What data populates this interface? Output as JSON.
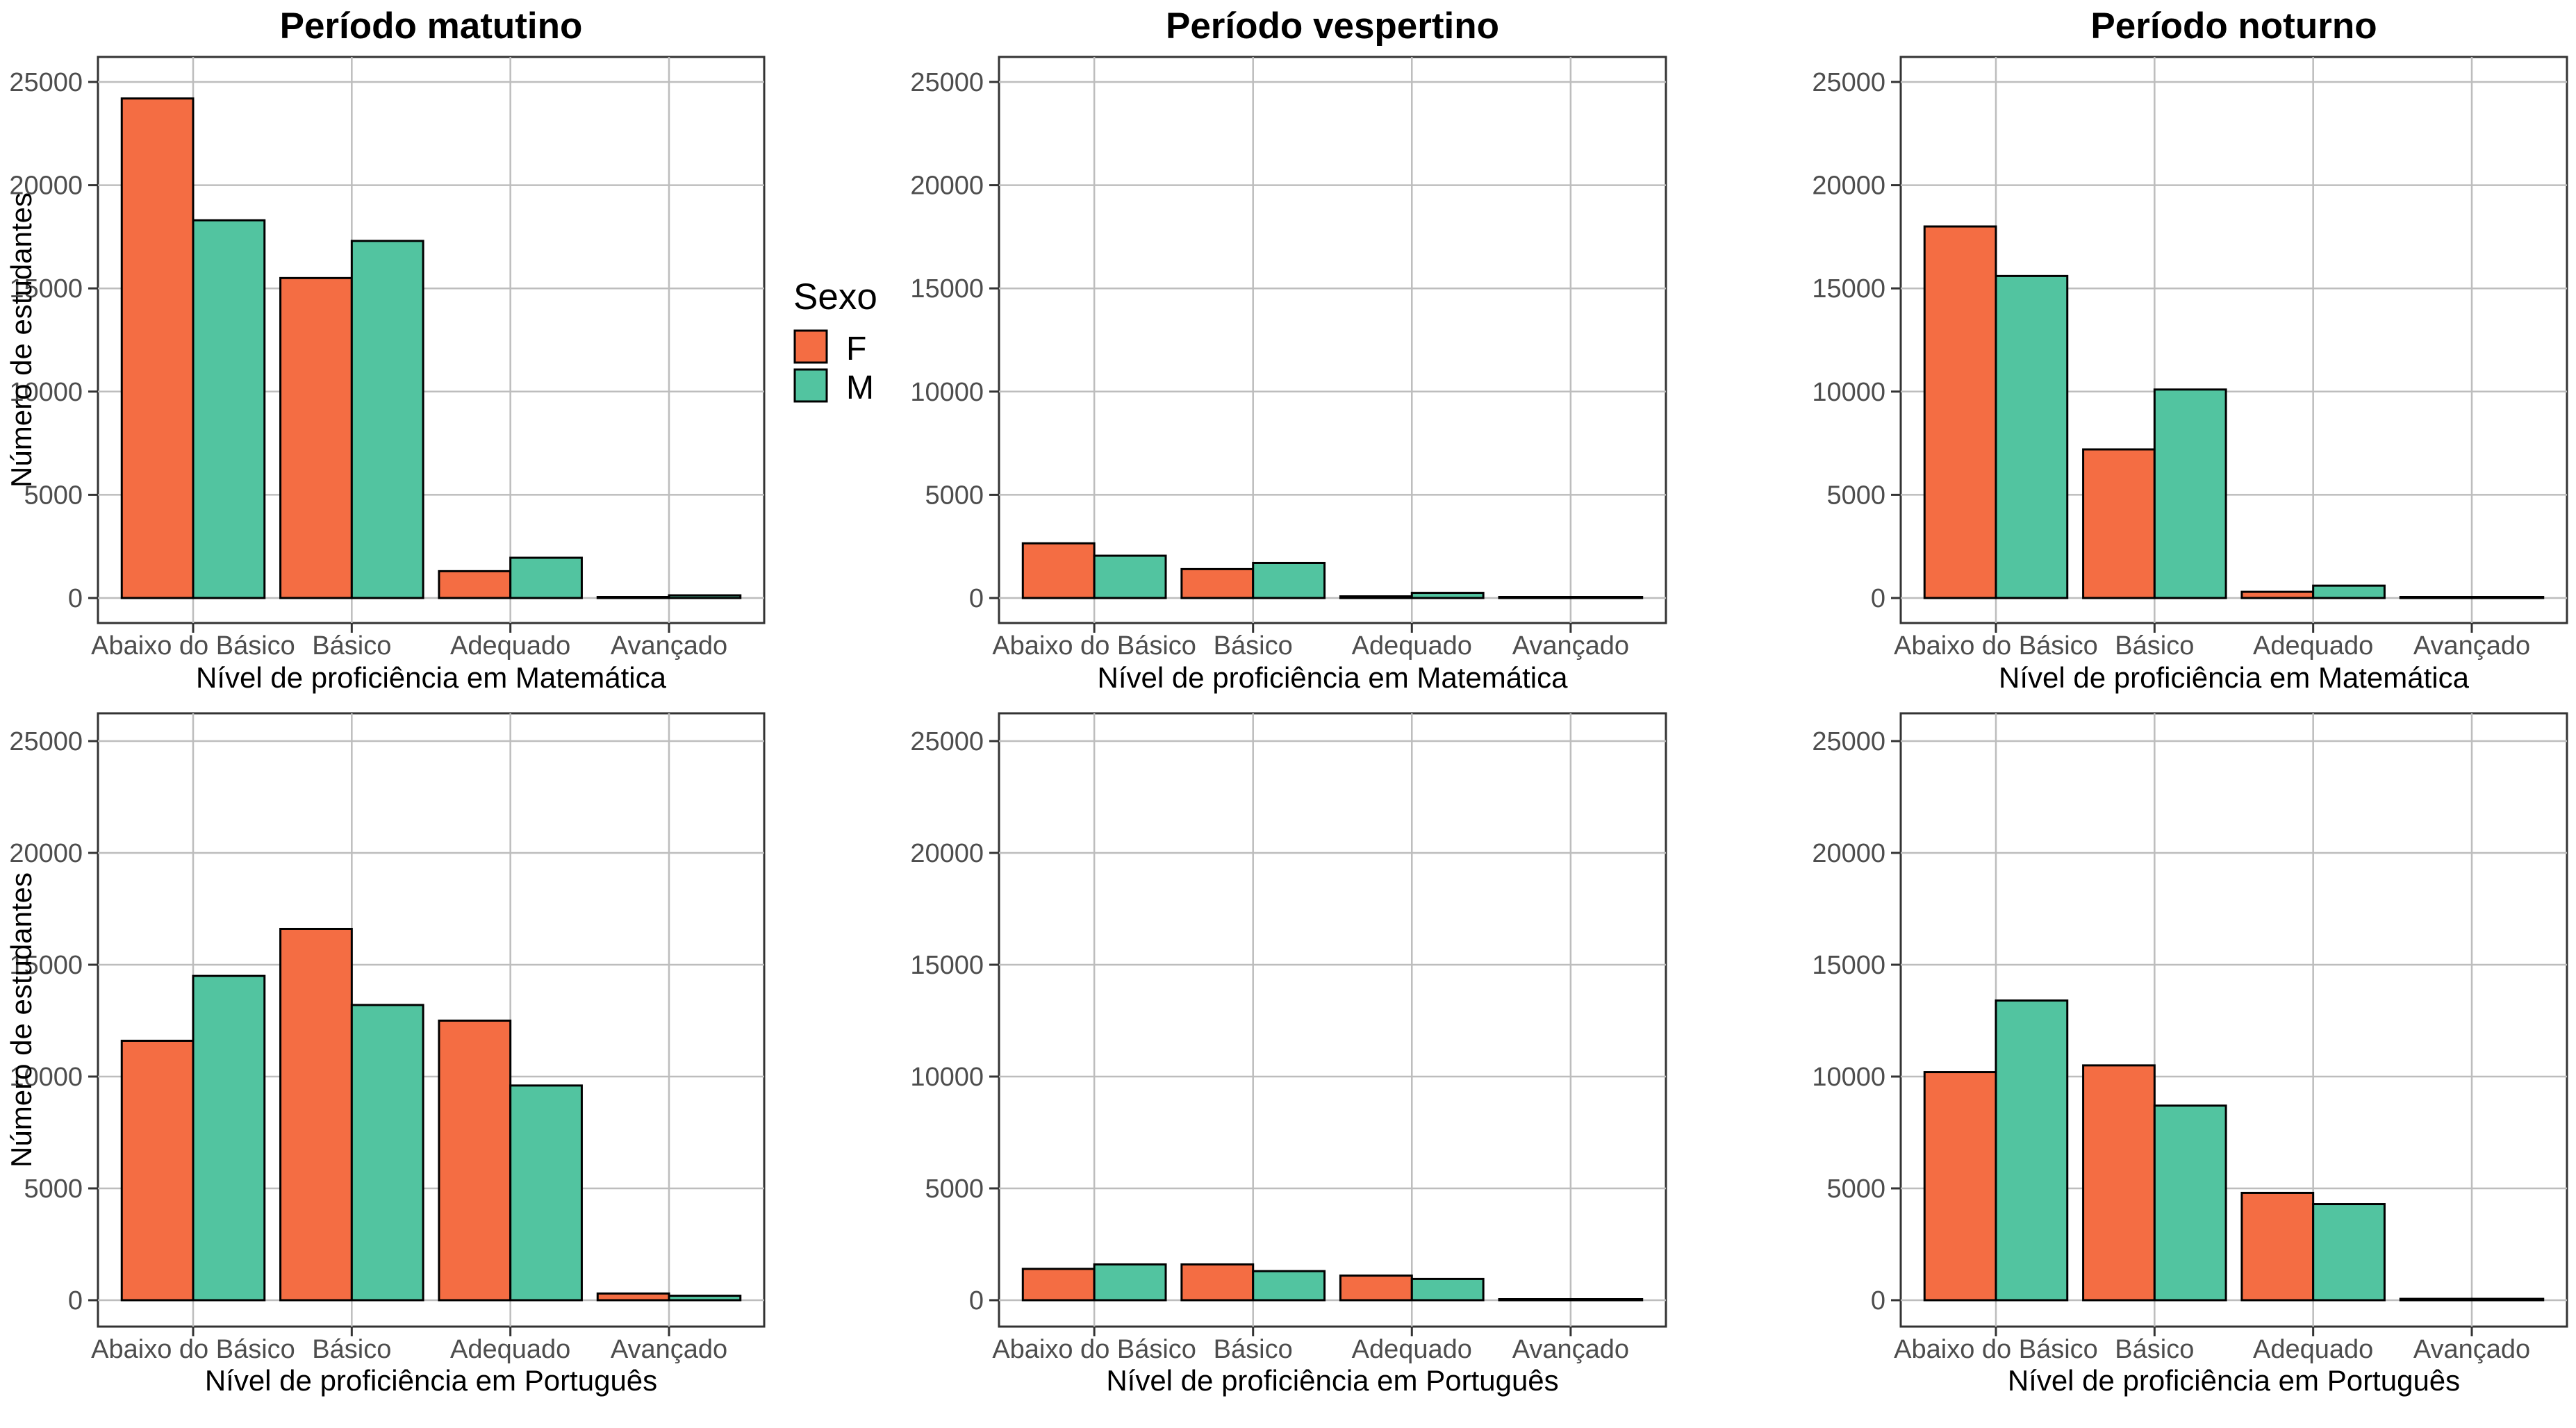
{
  "colors": {
    "F": "#F46D43",
    "M": "#52C4A0"
  },
  "legend": {
    "title": "Sexo",
    "items": [
      {
        "key": "F",
        "label": "F"
      },
      {
        "key": "M",
        "label": "M"
      }
    ]
  },
  "column_titles": [
    "Período matutino",
    "Período vespertino",
    "Período noturno"
  ],
  "y_axis_title": "Número de estudantes",
  "chart_data": [
    {
      "type": "bar",
      "title": "Período matutino",
      "xlabel": "Nível de proficiência em Matemática",
      "ylabel": "Número de estudantes",
      "categories": [
        "Abaixo do Básico",
        "Básico",
        "Adequado",
        "Avançado"
      ],
      "series": [
        {
          "name": "F",
          "values": [
            24200,
            15500,
            1300,
            50
          ]
        },
        {
          "name": "M",
          "values": [
            18300,
            17300,
            1950,
            130
          ]
        }
      ],
      "yticks": [
        0,
        5000,
        10000,
        15000,
        20000,
        25000
      ],
      "ylim": [
        0,
        25000
      ],
      "grid": true
    },
    {
      "type": "bar",
      "title": "Período vespertino",
      "xlabel": "Nível de proficiência em Matemática",
      "ylabel": "",
      "categories": [
        "Abaixo do Básico",
        "Básico",
        "Adequado",
        "Avançado"
      ],
      "series": [
        {
          "name": "F",
          "values": [
            2650,
            1400,
            80,
            10
          ]
        },
        {
          "name": "M",
          "values": [
            2050,
            1700,
            250,
            20
          ]
        }
      ],
      "yticks": [
        0,
        5000,
        10000,
        15000,
        20000,
        25000
      ],
      "ylim": [
        0,
        25000
      ],
      "grid": true
    },
    {
      "type": "bar",
      "title": "Período noturno",
      "xlabel": "Nível de proficiência em Matemática",
      "ylabel": "",
      "categories": [
        "Abaixo do Básico",
        "Básico",
        "Adequado",
        "Avançado"
      ],
      "series": [
        {
          "name": "F",
          "values": [
            18000,
            7200,
            300,
            10
          ]
        },
        {
          "name": "M",
          "values": [
            15600,
            10100,
            600,
            20
          ]
        }
      ],
      "yticks": [
        0,
        5000,
        10000,
        15000,
        20000,
        25000
      ],
      "ylim": [
        0,
        25000
      ],
      "grid": true
    },
    {
      "type": "bar",
      "title": "",
      "xlabel": "Nível de proficiência em Português",
      "ylabel": "Número de estudantes",
      "categories": [
        "Abaixo do Básico",
        "Básico",
        "Adequado",
        "Avançado"
      ],
      "series": [
        {
          "name": "F",
          "values": [
            11600,
            16600,
            12500,
            300
          ]
        },
        {
          "name": "M",
          "values": [
            14500,
            13200,
            9600,
            200
          ]
        }
      ],
      "yticks": [
        0,
        5000,
        10000,
        15000,
        20000,
        25000
      ],
      "ylim": [
        0,
        25000
      ],
      "grid": true
    },
    {
      "type": "bar",
      "title": "",
      "xlabel": "Nível de proficiência em Português",
      "ylabel": "",
      "categories": [
        "Abaixo do Básico",
        "Básico",
        "Adequado",
        "Avançado"
      ],
      "series": [
        {
          "name": "F",
          "values": [
            1400,
            1600,
            1100,
            10
          ]
        },
        {
          "name": "M",
          "values": [
            1600,
            1300,
            950,
            10
          ]
        }
      ],
      "yticks": [
        0,
        5000,
        10000,
        15000,
        20000,
        25000
      ],
      "ylim": [
        0,
        25000
      ],
      "grid": true
    },
    {
      "type": "bar",
      "title": "",
      "xlabel": "Nível de proficiência em Português",
      "ylabel": "",
      "categories": [
        "Abaixo do Básico",
        "Básico",
        "Adequado",
        "Avançado"
      ],
      "series": [
        {
          "name": "F",
          "values": [
            10200,
            10500,
            4800,
            60
          ]
        },
        {
          "name": "M",
          "values": [
            13400,
            8700,
            4300,
            60
          ]
        }
      ],
      "yticks": [
        0,
        5000,
        10000,
        15000,
        20000,
        25000
      ],
      "ylim": [
        0,
        25000
      ],
      "grid": true
    }
  ]
}
